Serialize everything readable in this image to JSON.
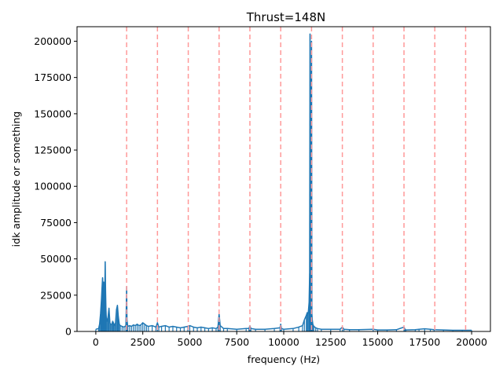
{
  "chart_data": {
    "type": "line",
    "title": "Thrust=148N",
    "xlabel": "frequency (Hz)",
    "ylabel": "idk amplitude or something",
    "xlim": [
      -1000,
      21000
    ],
    "ylim": [
      0,
      210000
    ],
    "x_ticks": [
      0,
      2500,
      5000,
      7500,
      10000,
      12500,
      15000,
      17500,
      20000
    ],
    "y_ticks": [
      0,
      25000,
      50000,
      75000,
      100000,
      125000,
      150000,
      175000,
      200000
    ],
    "grid": false,
    "series_color": "#1f77b4",
    "harmonic_line_color": "#ff9999",
    "harmonic_lines": [
      1640,
      3280,
      4920,
      6560,
      8200,
      9840,
      11480,
      13120,
      14760,
      16400,
      18040,
      19680
    ],
    "series": [
      {
        "x": [
          0,
          150,
          200,
          250,
          300,
          330,
          360,
          390,
          420,
          450,
          480,
          500,
          520,
          540,
          560,
          600,
          650,
          700,
          750,
          800,
          850,
          900,
          950,
          1000,
          1050,
          1100,
          1150,
          1200,
          1250,
          1300,
          1400,
          1500,
          1600,
          1620,
          1640,
          1660,
          1700,
          1800,
          1900,
          2000,
          2100,
          2200,
          2300,
          2400,
          2500,
          2600,
          2700,
          2800,
          3000,
          3200,
          3280,
          3350,
          3500,
          3700,
          3900,
          4100,
          4300,
          4500,
          4700,
          4900,
          5000,
          5200,
          5400,
          5600,
          5800,
          6000,
          6200,
          6400,
          6500,
          6560,
          6620,
          6800,
          7000,
          7500,
          8000,
          8150,
          8200,
          8250,
          8500,
          9000,
          9500,
          9800,
          9840,
          9880,
          10000,
          10500,
          10800,
          11000,
          11100,
          11200,
          11250,
          11300,
          11350,
          11380,
          11400,
          11420,
          11440,
          11460,
          11480,
          11500,
          11520,
          11550,
          11600,
          11700,
          11800,
          12000,
          12500,
          13000,
          13120,
          13200,
          13500,
          14000,
          14760,
          15000,
          15500,
          16000,
          16400,
          16450,
          16500,
          17000,
          17200,
          17500,
          17800,
          18000,
          18500,
          19000,
          19500,
          20000
        ],
        "values": [
          1500,
          2000,
          5000,
          12000,
          22000,
          30000,
          37000,
          25000,
          34000,
          20000,
          30000,
          48000,
          28000,
          15000,
          9000,
          7000,
          10000,
          16000,
          6000,
          4500,
          5000,
          7000,
          5500,
          4000,
          6000,
          15000,
          18000,
          10000,
          5000,
          4000,
          3500,
          3000,
          4000,
          15000,
          31000,
          8000,
          3500,
          4000,
          3500,
          4500,
          4000,
          5000,
          4000,
          4500,
          6000,
          5000,
          4000,
          3500,
          4000,
          3000,
          6000,
          3000,
          3500,
          4000,
          3000,
          3500,
          3000,
          2500,
          3000,
          3500,
          4000,
          3000,
          2500,
          3000,
          2500,
          2000,
          2500,
          2000,
          3000,
          12000,
          4000,
          2000,
          2000,
          1500,
          2000,
          2000,
          4000,
          2000,
          1500,
          1500,
          2000,
          2500,
          5000,
          2000,
          1500,
          2000,
          3000,
          4000,
          8000,
          11000,
          13000,
          12000,
          20000,
          40000,
          205000,
          150000,
          60000,
          30000,
          200000,
          12000,
          8000,
          5000,
          3500,
          2500,
          2000,
          1500,
          1500,
          1500,
          3000,
          1500,
          1200,
          1200,
          1500,
          1000,
          1000,
          1200,
          3000,
          1500,
          1000,
          1200,
          1500,
          1800,
          1500,
          1200,
          1000,
          800,
          800,
          800
        ]
      }
    ]
  }
}
